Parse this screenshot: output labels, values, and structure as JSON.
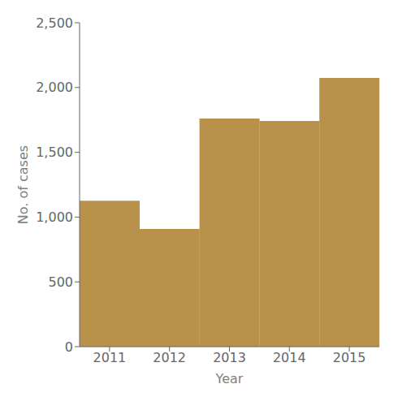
{
  "chart_data": {
    "type": "bar",
    "categories": [
      "2011",
      "2012",
      "2013",
      "2014",
      "2015"
    ],
    "values": [
      1126,
      909,
      1761,
      1742,
      2074
    ],
    "color": "#b8924a",
    "xlabel": "Year",
    "ylabel": "No. of cases",
    "ylim": [
      0,
      2500
    ],
    "yticks": [
      0,
      500,
      {
        "value": 1000,
        "label": "1,000"
      },
      {
        "value": 1500,
        "label": "1,500"
      },
      {
        "value": 2000,
        "label": "2,000"
      },
      {
        "value": 2500,
        "label": "2,500"
      }
    ],
    "grid": false
  }
}
